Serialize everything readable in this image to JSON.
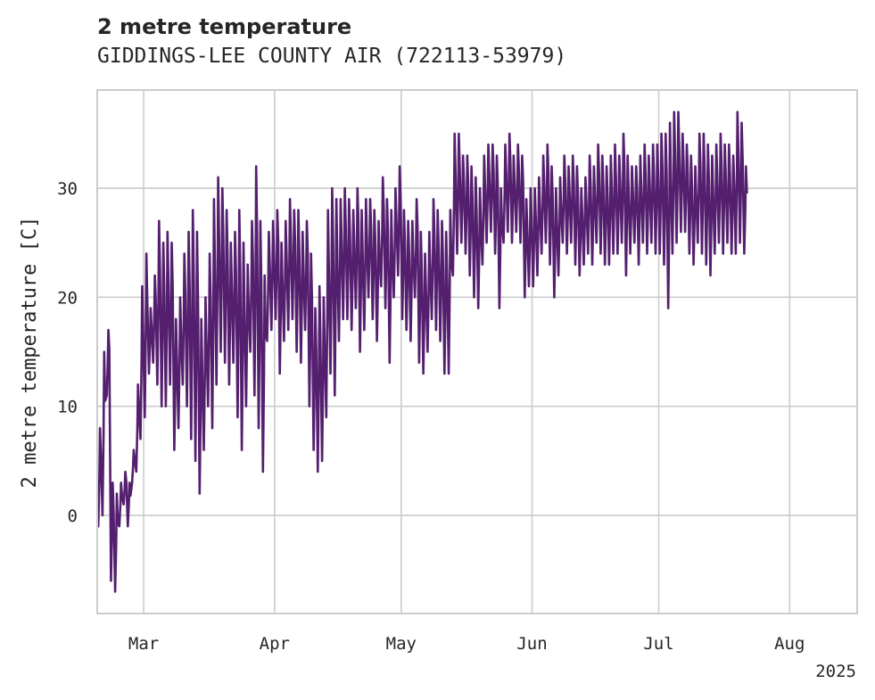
{
  "chart_data": {
    "type": "line",
    "title": "2 metre temperature",
    "subtitle": "GIDDINGS-LEE COUNTY AIR (722113-53979)",
    "xlabel": "",
    "ylabel": "2 metre temperature [C]",
    "x_tick_labels": [
      "Mar",
      "Apr",
      "May",
      "Jun",
      "Jul",
      "Aug"
    ],
    "x_year_label": "2025",
    "x_tick_dates": [
      "2025-03-01",
      "2025-04-01",
      "2025-05-01",
      "2025-06-01",
      "2025-07-01",
      "2025-08-01"
    ],
    "xlim": [
      "2025-02-18",
      "2025-08-17"
    ],
    "y_ticks": [
      0,
      10,
      20,
      30
    ],
    "ylim": [
      -9,
      39
    ],
    "grid": true,
    "legend": "none",
    "series": [
      {
        "color": "#541f6e",
        "daily_min": [
          -1,
          0,
          11,
          -6,
          -7,
          -1,
          1,
          -1,
          3,
          4,
          7,
          9,
          13,
          14,
          12,
          10,
          10,
          12,
          6,
          8,
          12,
          10,
          7,
          5,
          2,
          6,
          10,
          8,
          12,
          15,
          14,
          12,
          14,
          9,
          6,
          10,
          15,
          11,
          8,
          4,
          16,
          17,
          18,
          13,
          16,
          17,
          18,
          15,
          14,
          17,
          10,
          6,
          4,
          5,
          9,
          13,
          11,
          16,
          18,
          18,
          17,
          19,
          15,
          17,
          20,
          18,
          16,
          21,
          19,
          14,
          20,
          22,
          18,
          17,
          16,
          20,
          14,
          13,
          15,
          18,
          17,
          16,
          13,
          13,
          22,
          24,
          25,
          24,
          22,
          20,
          19,
          23,
          25,
          26,
          24,
          19,
          25,
          26,
          25,
          26,
          25,
          20,
          21,
          21,
          22,
          24,
          25,
          23,
          20,
          22,
          25,
          24,
          25,
          23,
          22,
          23,
          24,
          23,
          25,
          24,
          23,
          23,
          24,
          24,
          25,
          22,
          24,
          25,
          23,
          25,
          24,
          25,
          24,
          24,
          23,
          19,
          24,
          25,
          26,
          26,
          24,
          23,
          25,
          24,
          23,
          22,
          24,
          25,
          24,
          25,
          24,
          24,
          25,
          24
        ],
        "daily_max": [
          8,
          15,
          17,
          3,
          2,
          3,
          4,
          3,
          6,
          12,
          21,
          24,
          19,
          22,
          27,
          25,
          26,
          25,
          18,
          20,
          24,
          26,
          28,
          26,
          18,
          20,
          24,
          29,
          31,
          30,
          28,
          25,
          26,
          28,
          25,
          23,
          27,
          32,
          27,
          22,
          26,
          27,
          28,
          25,
          27,
          29,
          28,
          28,
          26,
          27,
          24,
          19,
          21,
          20,
          28,
          30,
          29,
          29,
          30,
          29,
          28,
          30,
          28,
          29,
          29,
          28,
          27,
          31,
          29,
          28,
          30,
          32,
          28,
          27,
          27,
          29,
          26,
          24,
          26,
          29,
          28,
          27,
          26,
          28,
          35,
          35,
          33,
          33,
          32,
          31,
          30,
          33,
          34,
          34,
          33,
          30,
          34,
          35,
          33,
          34,
          33,
          29,
          30,
          30,
          31,
          33,
          34,
          32,
          30,
          31,
          33,
          32,
          33,
          32,
          30,
          31,
          33,
          32,
          34,
          33,
          32,
          33,
          34,
          33,
          35,
          33,
          32,
          32,
          33,
          34,
          33,
          34,
          34,
          35,
          35,
          36,
          37,
          37,
          35,
          34,
          33,
          32,
          35,
          35,
          34,
          33,
          34,
          35,
          34,
          34,
          33,
          37,
          36,
          32
        ]
      }
    ]
  }
}
